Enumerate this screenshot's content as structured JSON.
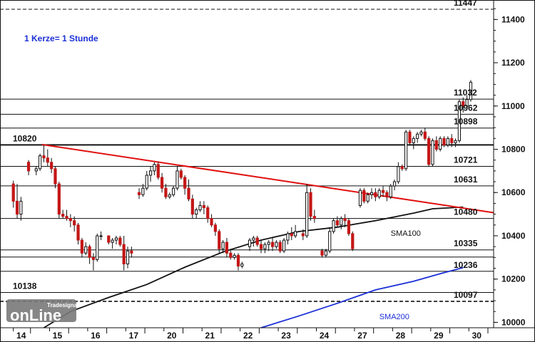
{
  "chart_data": {
    "type": "candlestick",
    "note": "1 Kerze= 1 Stunde",
    "ylim": [
      9975,
      11490
    ],
    "y_ticks": [
      10000,
      10200,
      10400,
      10600,
      10800,
      11000,
      11200,
      11400
    ],
    "x_day_labels": [
      "14",
      "15",
      "16",
      "17",
      "20",
      "21",
      "22",
      "23",
      "24",
      "27",
      "28",
      "29",
      "30"
    ],
    "x_day_positions": [
      0,
      9.5,
      19.5,
      29.5,
      39.5,
      49.5,
      59.5,
      69.5,
      79.5,
      89.5,
      99.5,
      109.5,
      119.5
    ],
    "x_range": [
      -3.5,
      126
    ],
    "levels": [
      {
        "value": 11447,
        "label": "11447",
        "style": "dashed"
      },
      {
        "value": 11032,
        "label": "11032",
        "style": "solid"
      },
      {
        "value": 10962,
        "label": "10962",
        "style": "solid"
      },
      {
        "value": 10898,
        "label": "10898",
        "style": "solid"
      },
      {
        "value": 10820,
        "label": "10820",
        "style": "bold",
        "label_side": "left"
      },
      {
        "value": 10721,
        "label": "10721",
        "style": "solid"
      },
      {
        "value": 10631,
        "label": "10631",
        "style": "solid"
      },
      {
        "value": 10480,
        "label": "10480",
        "style": "solid"
      },
      {
        "value": 10335,
        "label": "10335",
        "style": "solid"
      },
      {
        "value": 10302,
        "label": "",
        "style": "solid"
      },
      {
        "value": 10236,
        "label": "10236",
        "style": "solid"
      },
      {
        "value": 10138,
        "label": "10138",
        "style": "solid",
        "label_side": "left"
      },
      {
        "value": 10097,
        "label": "10097",
        "style": "dashed"
      }
    ],
    "trendline": {
      "from": {
        "x": 7.5,
        "y": 10822
      },
      "to": {
        "x": 126,
        "y": 10507
      },
      "color": "#e01010"
    },
    "series": [
      {
        "name": "SMA100",
        "color": "#111111",
        "points": [
          [
            8,
            9975
          ],
          [
            15,
            10050
          ],
          [
            25,
            10115
          ],
          [
            35,
            10175
          ],
          [
            45,
            10255
          ],
          [
            55,
            10325
          ],
          [
            65,
            10380
          ],
          [
            75,
            10420
          ],
          [
            85,
            10440
          ],
          [
            95,
            10470
          ],
          [
            105,
            10505
          ],
          [
            110,
            10525
          ],
          [
            118,
            10533
          ]
        ]
      },
      {
        "name": "SMA200",
        "color": "#1a2fd6",
        "points": [
          [
            65,
            9975
          ],
          [
            75,
            10030
          ],
          [
            85,
            10088
          ],
          [
            95,
            10150
          ],
          [
            105,
            10190
          ],
          [
            112,
            10225
          ],
          [
            118,
            10253
          ]
        ]
      }
    ],
    "candles": [
      [
        0,
        10640,
        10655,
        10530,
        10560
      ],
      [
        1,
        10560,
        10640,
        10480,
        10500
      ],
      [
        2,
        10500,
        10580,
        10470,
        10560
      ],
      [
        4,
        10740,
        10750,
        10680,
        10700
      ],
      [
        6,
        10700,
        10720,
        10680,
        10710
      ],
      [
        7,
        10710,
        10780,
        10700,
        10770
      ],
      [
        8,
        10770,
        10820,
        10740,
        10760
      ],
      [
        9,
        10760,
        10800,
        10720,
        10740
      ],
      [
        10,
        10740,
        10760,
        10690,
        10710
      ],
      [
        11,
        10710,
        10720,
        10620,
        10640
      ],
      [
        12,
        10640,
        10650,
        10480,
        10500
      ],
      [
        13,
        10500,
        10520,
        10480,
        10490
      ],
      [
        14,
        10490,
        10520,
        10470,
        10480
      ],
      [
        15,
        10480,
        10500,
        10440,
        10470
      ],
      [
        16,
        10470,
        10490,
        10420,
        10450
      ],
      [
        17,
        10450,
        10460,
        10360,
        10380
      ],
      [
        18,
        10380,
        10390,
        10300,
        10320
      ],
      [
        19,
        10320,
        10370,
        10310,
        10350
      ],
      [
        20,
        10350,
        10360,
        10270,
        10300
      ],
      [
        21,
        10300,
        10320,
        10240,
        10290
      ],
      [
        22,
        10290,
        10410,
        10280,
        10400
      ],
      [
        23,
        10400,
        10420,
        10380,
        10400
      ],
      [
        25,
        10400,
        10400,
        10360,
        10370
      ],
      [
        26,
        10370,
        10390,
        10340,
        10380
      ],
      [
        27,
        10380,
        10400,
        10360,
        10390
      ],
      [
        28,
        10390,
        10400,
        10350,
        10360
      ],
      [
        29,
        10360,
        10400,
        10240,
        10270
      ],
      [
        30,
        10270,
        10350,
        10250,
        10330
      ],
      [
        31,
        10330,
        10350,
        10300,
        10320
      ],
      [
        33,
        10600,
        10620,
        10570,
        10590
      ],
      [
        34,
        10590,
        10640,
        10580,
        10620
      ],
      [
        35,
        10620,
        10700,
        10610,
        10680
      ],
      [
        36,
        10680,
        10720,
        10650,
        10700
      ],
      [
        37,
        10700,
        10740,
        10680,
        10730
      ],
      [
        38,
        10730,
        10740,
        10660,
        10670
      ],
      [
        39,
        10670,
        10690,
        10600,
        10620
      ],
      [
        40,
        10620,
        10640,
        10570,
        10580
      ],
      [
        41,
        10580,
        10600,
        10570,
        10590
      ],
      [
        42,
        10590,
        10630,
        10580,
        10620
      ],
      [
        43,
        10620,
        10720,
        10610,
        10700
      ],
      [
        44,
        10700,
        10710,
        10660,
        10670
      ],
      [
        45,
        10670,
        10680,
        10590,
        10620
      ],
      [
        46,
        10620,
        10660,
        10560,
        10570
      ],
      [
        47,
        10570,
        10590,
        10480,
        10500
      ],
      [
        48,
        10500,
        10530,
        10480,
        10520
      ],
      [
        49,
        10520,
        10560,
        10510,
        10540
      ],
      [
        50,
        10540,
        10560,
        10500,
        10530
      ],
      [
        51,
        10530,
        10540,
        10460,
        10480
      ],
      [
        52,
        10480,
        10500,
        10440,
        10450
      ],
      [
        53,
        10450,
        10460,
        10400,
        10420
      ],
      [
        54,
        10420,
        10430,
        10320,
        10340
      ],
      [
        55,
        10340,
        10380,
        10320,
        10370
      ],
      [
        56,
        10370,
        10390,
        10300,
        10320
      ],
      [
        57,
        10320,
        10340,
        10290,
        10300
      ],
      [
        58,
        10300,
        10320,
        10290,
        10310
      ],
      [
        59,
        10310,
        10320,
        10240,
        10260
      ],
      [
        60,
        10260,
        10280,
        10250,
        10270
      ],
      [
        62,
        10350,
        10390,
        10330,
        10380
      ],
      [
        63,
        10380,
        10400,
        10350,
        10390
      ],
      [
        64,
        10390,
        10400,
        10350,
        10360
      ],
      [
        65,
        10360,
        10380,
        10320,
        10340
      ],
      [
        66,
        10340,
        10370,
        10320,
        10360
      ],
      [
        67,
        10360,
        10380,
        10330,
        10370
      ],
      [
        68,
        10370,
        10390,
        10330,
        10350
      ],
      [
        69,
        10350,
        10380,
        10340,
        10370
      ],
      [
        70,
        10370,
        10380,
        10320,
        10330
      ],
      [
        71,
        10330,
        10390,
        10320,
        10380
      ],
      [
        72,
        10380,
        10420,
        10360,
        10410
      ],
      [
        73,
        10410,
        10440,
        10380,
        10400
      ],
      [
        74,
        10400,
        10450,
        10390,
        10420
      ],
      [
        76,
        10410,
        10430,
        10380,
        10400
      ],
      [
        77,
        10400,
        10640,
        10390,
        10600
      ],
      [
        78,
        10600,
        10620,
        10470,
        10490
      ],
      [
        79,
        10490,
        10520,
        10460,
        10480
      ],
      [
        81,
        10330,
        10340,
        10300,
        10310
      ],
      [
        82,
        10310,
        10340,
        10300,
        10330
      ],
      [
        83,
        10330,
        10440,
        10320,
        10420
      ],
      [
        84,
        10420,
        10480,
        10410,
        10470
      ],
      [
        85,
        10470,
        10490,
        10440,
        10450
      ],
      [
        86,
        10450,
        10490,
        10430,
        10480
      ],
      [
        87,
        10480,
        10500,
        10440,
        10470
      ],
      [
        88,
        10470,
        10480,
        10400,
        10410
      ],
      [
        89,
        10410,
        10420,
        10330,
        10340
      ],
      [
        91,
        10540,
        10620,
        10530,
        10610
      ],
      [
        92,
        10610,
        10620,
        10550,
        10560
      ],
      [
        93,
        10560,
        10600,
        10550,
        10590
      ],
      [
        94,
        10590,
        10620,
        10570,
        10600
      ],
      [
        95,
        10600,
        10620,
        10560,
        10580
      ],
      [
        96,
        10580,
        10620,
        10570,
        10610
      ],
      [
        97,
        10610,
        10630,
        10580,
        10600
      ],
      [
        98,
        10600,
        10610,
        10560,
        10580
      ],
      [
        99,
        10580,
        10640,
        10570,
        10630
      ],
      [
        100,
        10630,
        10660,
        10610,
        10650
      ],
      [
        101,
        10650,
        10740,
        10640,
        10720
      ],
      [
        102,
        10720,
        10730,
        10700,
        10710
      ],
      [
        103,
        10710,
        10890,
        10700,
        10880
      ],
      [
        104,
        10880,
        10890,
        10820,
        10830
      ],
      [
        105,
        10830,
        10860,
        10800,
        10850
      ],
      [
        106,
        10850,
        10880,
        10830,
        10870
      ],
      [
        107,
        10870,
        10890,
        10860,
        10880
      ],
      [
        108,
        10880,
        10900,
        10840,
        10850
      ],
      [
        109,
        10850,
        10860,
        10720,
        10730
      ],
      [
        110,
        10730,
        10850,
        10720,
        10840
      ],
      [
        111,
        10840,
        10860,
        10790,
        10800
      ],
      [
        112,
        10800,
        10860,
        10790,
        10850
      ],
      [
        113,
        10850,
        10860,
        10810,
        10820
      ],
      [
        114,
        10820,
        10860,
        10810,
        10850
      ],
      [
        115,
        10850,
        10870,
        10810,
        10830
      ],
      [
        116,
        10830,
        10850,
        10810,
        10840
      ],
      [
        117,
        10840,
        11030,
        10830,
        11020
      ],
      [
        118,
        11020,
        11040,
        10970,
        11000
      ],
      [
        119,
        11000,
        11050,
        10980,
        11030
      ],
      [
        120,
        11030,
        11120,
        11020,
        11110
      ]
    ],
    "sma_labels": [
      {
        "name": "SMA100",
        "x": 99,
        "y": 10400,
        "color": "#111111"
      },
      {
        "name": "SMA200",
        "x": 96,
        "y": 10015,
        "color": "#1a2fd6"
      }
    ]
  },
  "watermark": {
    "small": "Tradesignal",
    "big": "onLine"
  },
  "colors": {
    "bull": "#111111",
    "bear": "#c41616",
    "bg": "#ffffff",
    "grid": "#111111"
  }
}
